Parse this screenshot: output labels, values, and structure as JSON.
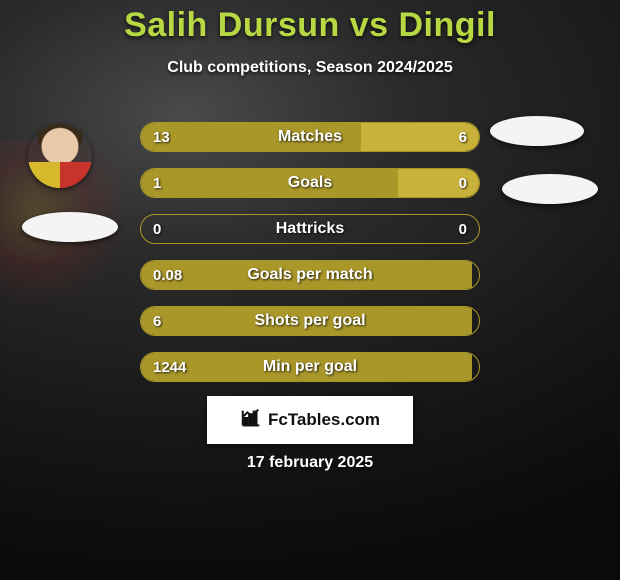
{
  "title_color": "#b8d843",
  "title": "Salih Dursun vs Dingil",
  "subtitle": "Club competitions, Season 2024/2025",
  "colors": {
    "left_bar": "#a9972a",
    "right_bar": "#c9b23b",
    "row_border": "#aa9628",
    "text": "#ffffff"
  },
  "players": {
    "left": {
      "name": "Salih Dursun"
    },
    "right": {
      "name": "Dingil"
    }
  },
  "rows": [
    {
      "label": "Matches",
      "left": "13",
      "right": "6",
      "left_pct": 65,
      "right_pct": 35,
      "show_right_bar": true
    },
    {
      "label": "Goals",
      "left": "1",
      "right": "0",
      "left_pct": 76,
      "right_pct": 24,
      "show_right_bar": true
    },
    {
      "label": "Hattricks",
      "left": "0",
      "right": "0",
      "left_pct": 0,
      "right_pct": 0,
      "show_right_bar": false
    },
    {
      "label": "Goals per match",
      "left": "0.08",
      "right": "",
      "left_pct": 98,
      "right_pct": 0,
      "show_right_bar": false
    },
    {
      "label": "Shots per goal",
      "left": "6",
      "right": "",
      "left_pct": 98,
      "right_pct": 0,
      "show_right_bar": false
    },
    {
      "label": "Min per goal",
      "left": "1244",
      "right": "",
      "left_pct": 98,
      "right_pct": 0,
      "show_right_bar": false
    }
  ],
  "footer": {
    "brand": "FcTables.com"
  },
  "date": "17 february 2025"
}
